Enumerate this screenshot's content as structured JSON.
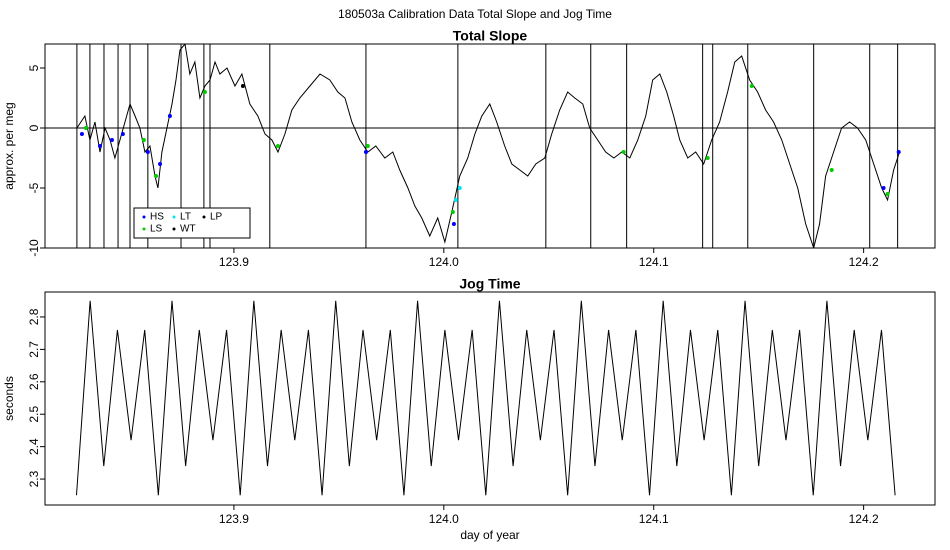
{
  "title": "180503a   Calibration Data Total Slope and Jog Time",
  "chart_data": [
    {
      "type": "line",
      "title": "Total Slope",
      "ylabel": "approx. per meg",
      "xlim": [
        123.81,
        124.234
      ],
      "ylim": [
        -10,
        7
      ],
      "xticks": [
        123.9,
        {
          "value": 124,
          "label": "124.0"
        },
        124.1,
        124.2
      ],
      "yticks": [
        -10,
        -5,
        0,
        5
      ],
      "hline": 0,
      "legend": "bottomleft",
      "vlines": [
        123.8252,
        123.8314,
        123.8381,
        123.8448,
        123.8505,
        123.859,
        123.8748,
        123.8857,
        123.8886,
        123.9171,
        123.9629,
        124.0067,
        124.0486,
        124.07,
        124.0871,
        124.1233,
        124.1281,
        124.1448,
        124.1762,
        124.2029,
        124.2162
      ],
      "series": [
        {
          "name": "WT",
          "style": "line",
          "color": "#000000",
          "x": [
            123.8252,
            123.829,
            123.8314,
            123.8338,
            123.8362,
            123.8386,
            123.841,
            123.8433,
            123.8457,
            123.8481,
            123.8505,
            123.8529,
            123.8552,
            123.8576,
            123.86,
            123.8624,
            123.8638,
            123.8657,
            123.8681,
            123.8705,
            123.8724,
            123.8743,
            123.8767,
            123.879,
            123.8814,
            123.8838,
            123.8862,
            123.8886,
            123.891,
            123.8933,
            123.8967,
            123.9005,
            123.9038,
            123.9076,
            123.9114,
            123.9148,
            123.9181,
            123.921,
            123.9243,
            123.9276,
            123.9314,
            123.9362,
            123.941,
            123.9457,
            123.9495,
            123.9529,
            123.9562,
            123.96,
            123.9638,
            123.9676,
            123.9719,
            123.9757,
            123.979,
            123.9829,
            123.9862,
            123.9895,
            123.9933,
            123.9971,
            124.0005,
            124.0038,
            124.0076,
            124.0114,
            124.0148,
            124.0181,
            124.0219,
            124.0252,
            124.029,
            124.0324,
            124.0362,
            124.04,
            124.0438,
            124.0481,
            124.0514,
            124.0552,
            124.059,
            124.0624,
            124.0662,
            124.0695,
            124.0733,
            124.0771,
            124.081,
            124.0848,
            124.0886,
            124.0924,
            124.0962,
            124.0995,
            124.1029,
            124.1062,
            124.1095,
            124.1124,
            124.1162,
            124.12,
            124.1238,
            124.1276,
            124.1314,
            124.1352,
            124.1386,
            124.1419,
            124.1457,
            124.1495,
            124.1533,
            124.1571,
            124.161,
            124.1648,
            124.1686,
            124.1724,
            124.1762,
            124.179,
            124.1819,
            124.1857,
            124.1895,
            124.1933,
            124.1971,
            124.201,
            124.2048,
            124.2086,
            124.2114,
            124.2143,
            124.2171
          ],
          "values": [
            0,
            1,
            -1,
            0.5,
            -2,
            0,
            -1,
            -2.5,
            -1,
            0.5,
            2,
            1,
            0,
            -2,
            -1.5,
            -4,
            -5,
            -2,
            0,
            2,
            4,
            6.5,
            7,
            4.5,
            5.5,
            2.5,
            3.5,
            4,
            5.5,
            4.5,
            5,
            3.5,
            4.5,
            2,
            1,
            -0.5,
            -1,
            -2,
            -0.5,
            1.5,
            2.5,
            3.5,
            4.5,
            4,
            3,
            2.5,
            0.5,
            -1,
            -2,
            -1.5,
            -2.5,
            -2,
            -3.5,
            -5,
            -6.5,
            -7.5,
            -9,
            -7.5,
            -9.5,
            -7,
            -4,
            -2.5,
            -0.5,
            1,
            2,
            0.5,
            -1.5,
            -3,
            -3.5,
            -4,
            -3,
            -2.5,
            -0.5,
            1.5,
            3,
            2.5,
            2,
            0,
            -1,
            -2,
            -2.5,
            -2,
            -2.5,
            -1,
            1,
            4,
            4.5,
            3,
            1,
            -1,
            -2.5,
            -2,
            -3,
            -1,
            0.5,
            3,
            5.5,
            6,
            4,
            3,
            1.5,
            0.5,
            -1,
            -3,
            -5,
            -8,
            -10,
            -8,
            -4,
            -2,
            0,
            0.5,
            0,
            -1,
            -3,
            -5,
            -6,
            -3.5,
            -2
          ]
        },
        {
          "name": "HS",
          "style": "points",
          "color": "#0000ff",
          "x": [
            123.8276,
            123.8362,
            123.8419,
            123.8471,
            123.859,
            123.8648,
            123.8695,
            123.9629,
            124.0048,
            124.2095,
            124.2167
          ],
          "values": [
            -0.5,
            -1.5,
            -1,
            -0.5,
            -2,
            -3,
            1,
            -2,
            -8,
            -5,
            -2
          ]
        },
        {
          "name": "LS",
          "style": "points",
          "color": "#00cc00",
          "x": [
            123.8295,
            123.8571,
            123.8629,
            123.8862,
            123.921,
            123.9638,
            124.0043,
            124.0857,
            124.1257,
            124.1467,
            124.1848,
            124.2114
          ],
          "values": [
            0,
            -1,
            -4,
            3,
            -1.5,
            -1.5,
            -7,
            -2,
            -2.5,
            3.5,
            -3.5,
            -5.5
          ]
        },
        {
          "name": "LT",
          "style": "points",
          "color": "#00e5ee",
          "x": [
            124.0057,
            124.0076
          ],
          "values": [
            -6,
            -5
          ]
        },
        {
          "name": "LP",
          "style": "points",
          "color": "#000000",
          "x": [
            123.9043
          ],
          "values": [
            3.5
          ]
        }
      ]
    },
    {
      "type": "line",
      "title": "Jog Time",
      "ylabel": "seconds",
      "xlabel": "day of year",
      "xlim": [
        123.81,
        124.234
      ],
      "ylim": [
        2.22,
        2.877
      ],
      "xticks": [
        123.9,
        {
          "value": 124,
          "label": "124.0"
        },
        124.1,
        124.2
      ],
      "yticks": [
        2.3,
        2.4,
        2.5,
        2.6,
        2.7,
        2.8
      ],
      "series": [
        {
          "style": "line",
          "color": "#000000",
          "x": [
            123.825,
            123.8315,
            123.838,
            123.8445,
            123.851,
            123.8575,
            123.864,
            123.8705,
            123.877,
            123.8835,
            123.89,
            123.8965,
            123.903,
            123.9095,
            123.916,
            123.9225,
            123.929,
            123.9355,
            123.942,
            123.9485,
            123.955,
            123.9615,
            123.968,
            123.9745,
            123.981,
            123.9875,
            123.994,
            124.0005,
            124.007,
            124.0135,
            124.02,
            124.0265,
            124.033,
            124.0395,
            124.046,
            124.0525,
            124.059,
            124.0655,
            124.072,
            124.0785,
            124.085,
            124.0915,
            124.098,
            124.1045,
            124.111,
            124.1175,
            124.124,
            124.1305,
            124.137,
            124.1435,
            124.15,
            124.1565,
            124.163,
            124.1695,
            124.176,
            124.1825,
            124.189,
            124.1955,
            124.202,
            124.2085,
            124.215
          ],
          "values": [
            2.25,
            2.85,
            2.34,
            2.76,
            2.42,
            2.76,
            2.25,
            2.85,
            2.34,
            2.76,
            2.42,
            2.76,
            2.25,
            2.85,
            2.34,
            2.76,
            2.42,
            2.76,
            2.25,
            2.85,
            2.34,
            2.76,
            2.42,
            2.76,
            2.25,
            2.85,
            2.34,
            2.76,
            2.42,
            2.76,
            2.25,
            2.85,
            2.34,
            2.76,
            2.42,
            2.76,
            2.25,
            2.85,
            2.34,
            2.76,
            2.42,
            2.76,
            2.25,
            2.85,
            2.34,
            2.76,
            2.42,
            2.76,
            2.25,
            2.85,
            2.34,
            2.76,
            2.42,
            2.76,
            2.25,
            2.85,
            2.34,
            2.76,
            2.42,
            2.76,
            2.25
          ]
        }
      ]
    }
  ]
}
